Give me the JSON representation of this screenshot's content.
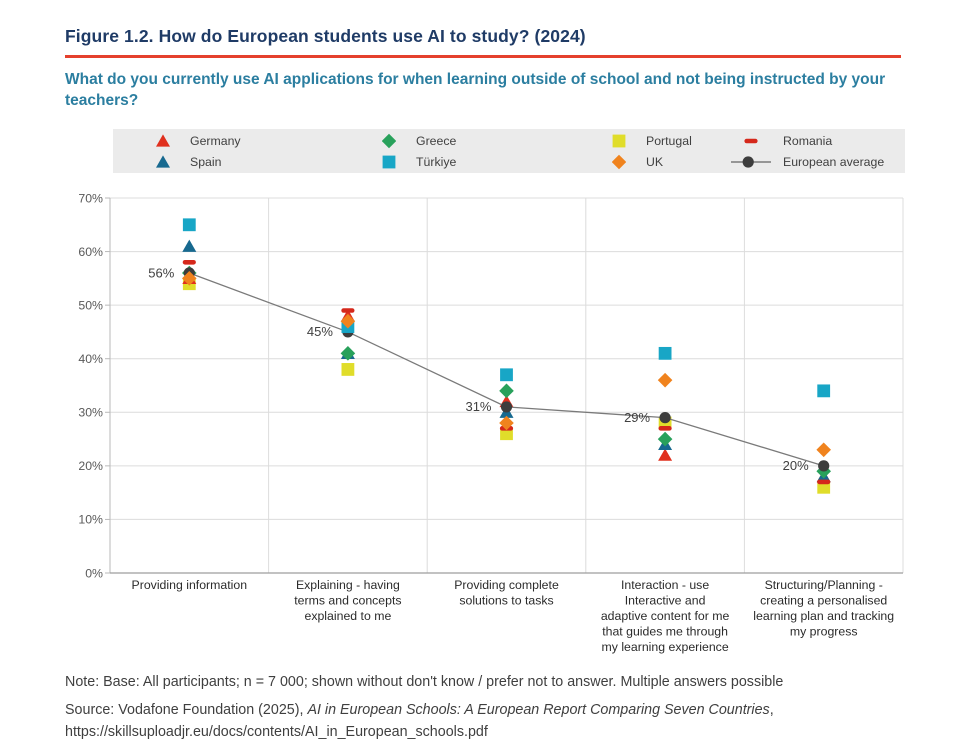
{
  "figure": {
    "title": "Figure 1.2. How do European students use AI to study? (2024)",
    "subtitle": "What do you currently use AI applications for when learning outside of school and not being instructed by your teachers?",
    "accent_rule_color": "#e5402d",
    "title_color": "#1f3b66",
    "subtitle_color": "#2b7ea0"
  },
  "legend": {
    "background": "#ebebeb",
    "items": [
      {
        "label": "Germany",
        "marker": "triangle",
        "color": "#e0301e"
      },
      {
        "label": "Greece",
        "marker": "diamond",
        "color": "#28a15b"
      },
      {
        "label": "Portugal",
        "marker": "square",
        "color": "#e0dd2a"
      },
      {
        "label": "Romania",
        "marker": "dash",
        "color": "#d5281b"
      },
      {
        "label": "Spain",
        "marker": "triangle",
        "color": "#17698f"
      },
      {
        "label": "Türkiye",
        "marker": "square",
        "color": "#18a6c6"
      },
      {
        "label": "UK",
        "marker": "diamond",
        "color": "#f0831e"
      },
      {
        "label": "European average",
        "marker": "line-circle",
        "color": "#3d3d3d"
      }
    ]
  },
  "chart_data": {
    "type": "scatter",
    "title": "How do European students use AI to study? (2024)",
    "xlabel": "",
    "ylabel": "",
    "ylim": [
      0,
      70
    ],
    "ytick_step": 10,
    "ytick_labels": [
      "0%",
      "10%",
      "20%",
      "30%",
      "40%",
      "50%",
      "60%",
      "70%"
    ],
    "grid": true,
    "legend_position": "top",
    "categories": [
      "Providing information",
      "Explaining - having terms and concepts explained to me",
      "Providing complete solutions to tasks",
      "Interaction - use Interactive and adaptive content for me that guides me through my learning experience",
      "Structuring/Planning - creating a personalised learning plan and tracking my progress"
    ],
    "category_lines": [
      [
        "Providing information"
      ],
      [
        "Explaining - having",
        "terms and concepts",
        "explained to me"
      ],
      [
        "Providing complete",
        "solutions to tasks"
      ],
      [
        "Interaction - use",
        "Interactive and",
        "adaptive content for me",
        "that guides me through",
        "my learning experience"
      ],
      [
        "Structuring/Planning -",
        "creating a personalised",
        "learning plan and tracking",
        "my progress"
      ]
    ],
    "series": [
      {
        "name": "Germany",
        "marker": "triangle",
        "color": "#e0301e",
        "values": [
          55,
          48,
          32,
          22,
          18
        ]
      },
      {
        "name": "Spain",
        "marker": "triangle",
        "color": "#17698f",
        "values": [
          61,
          41,
          30,
          24,
          18
        ]
      },
      {
        "name": "Greece",
        "marker": "diamond",
        "color": "#28a15b",
        "values": [
          56,
          41,
          34,
          25,
          19
        ]
      },
      {
        "name": "Türkiye",
        "marker": "square",
        "color": "#18a6c6",
        "values": [
          65,
          46,
          37,
          41,
          34
        ]
      },
      {
        "name": "Portugal",
        "marker": "square",
        "color": "#e0dd2a",
        "values": [
          54,
          38,
          26,
          28,
          16
        ]
      },
      {
        "name": "UK",
        "marker": "diamond",
        "color": "#f0831e",
        "values": [
          55,
          47,
          28,
          36,
          23
        ]
      },
      {
        "name": "Romania",
        "marker": "dash",
        "color": "#d5281b",
        "values": [
          58,
          49,
          27,
          27,
          17
        ]
      },
      {
        "name": "European average",
        "marker": "circle",
        "color": "#3d3d3d",
        "line": true,
        "line_color": "#7a7a7a",
        "values": [
          56,
          45,
          31,
          29,
          20
        ],
        "point_labels": [
          "56%",
          "45%",
          "31%",
          "29%",
          "20%"
        ]
      }
    ]
  },
  "notes": {
    "note": "Note: Base: All participants; n = 7 000; shown without don't know / prefer not to answer. Multiple answers possible",
    "source_prefix": "Source: Vodafone Foundation (2025), ",
    "source_italic": "AI in European Schools: A European Report Comparing Seven Countries",
    "source_suffix": ", https://skillsuploadjr.eu/docs/contents/AI_in_European_schools.pdf"
  }
}
